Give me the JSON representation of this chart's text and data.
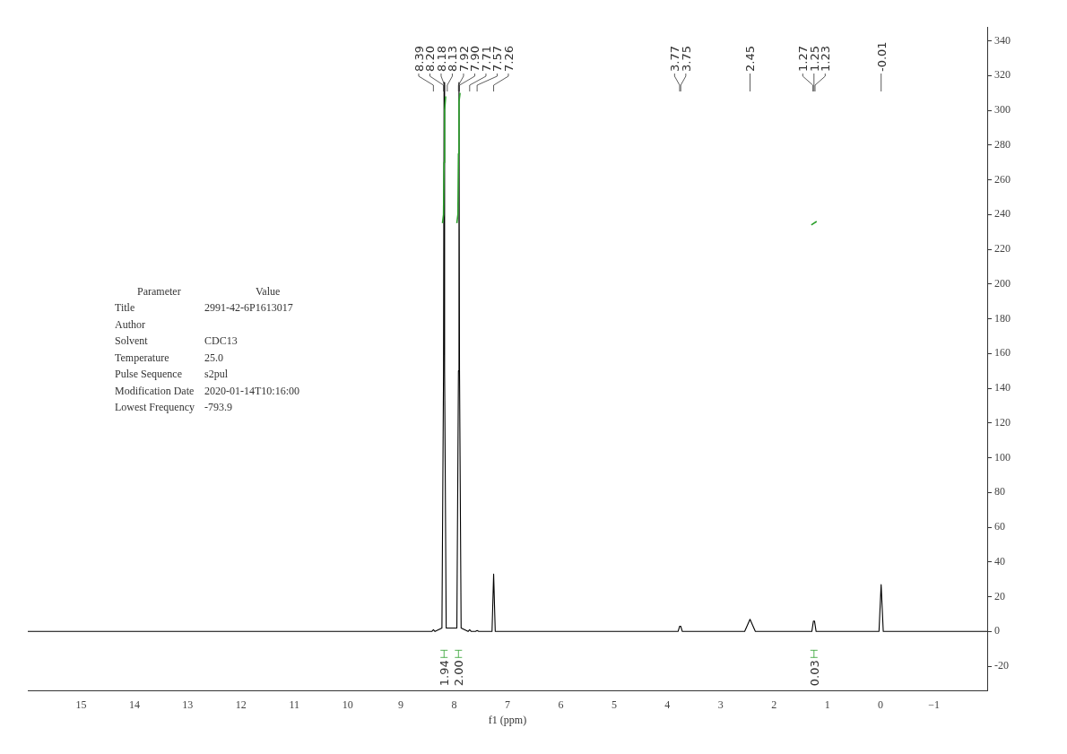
{
  "chart_data": {
    "type": "line",
    "xlabel": "f1 (ppm)",
    "x": [
      16,
      8.6,
      8.42,
      8.39,
      8.36,
      8.23,
      8.2,
      8.19,
      8.18,
      8.15,
      7.95,
      7.92,
      7.91,
      7.9,
      7.87,
      7.74,
      7.71,
      7.68,
      7.6,
      7.57,
      7.54,
      7.29,
      7.26,
      7.23,
      3.8,
      3.77,
      3.75,
      3.72,
      2.55,
      2.45,
      2.35,
      1.29,
      1.26,
      1.24,
      1.21,
      0.03,
      -0.01,
      -0.05,
      -2
    ],
    "series": [
      {
        "color": "#000000",
        "values": [
          0,
          0,
          0,
          1,
          0,
          2,
          150,
          316,
          150,
          2,
          2,
          150,
          316,
          150,
          2,
          0,
          1,
          0,
          0,
          0.5,
          0,
          0,
          33,
          0,
          0,
          3,
          3,
          0,
          0,
          7,
          0,
          0,
          6,
          6,
          0,
          0,
          27,
          0,
          0
        ]
      },
      {
        "color": "#2ca02c",
        "x": [
          8.22,
          8.2,
          8.19,
          8.18,
          8.16,
          8.1,
          7.95,
          7.93,
          7.92,
          7.91,
          7.89,
          1.5,
          1.3,
          1.2
        ],
        "values": [
          235,
          240,
          270,
          300,
          308,
          null,
          235,
          240,
          275,
          305,
          310,
          null,
          234,
          236
        ]
      }
    ],
    "xlim": [
      16,
      -2
    ],
    "xticks": [
      15,
      14,
      13,
      12,
      11,
      10,
      9,
      8,
      7,
      6,
      5,
      4,
      3,
      2,
      1,
      0,
      -1
    ],
    "ylim": [
      -34,
      348
    ],
    "yticks": [
      -20,
      0,
      20,
      40,
      60,
      80,
      100,
      120,
      140,
      160,
      180,
      200,
      220,
      240,
      260,
      280,
      300,
      320,
      340
    ],
    "grid": false,
    "legend": false,
    "marker": "none",
    "line_style": "solid",
    "annotations": [
      {
        "text": "8.39",
        "x": 8.39
      },
      {
        "text": "8.20",
        "x": 8.2
      },
      {
        "text": "8.18",
        "x": 8.18
      },
      {
        "text": "8.13",
        "x": 8.13
      },
      {
        "text": "7.92",
        "x": 7.92
      },
      {
        "text": "7.90",
        "x": 7.9
      },
      {
        "text": "7.71",
        "x": 7.71
      },
      {
        "text": "7.57",
        "x": 7.57
      },
      {
        "text": "7.26",
        "x": 7.26
      },
      {
        "text": "3.77",
        "x": 3.77
      },
      {
        "text": "3.75",
        "x": 3.75
      },
      {
        "text": "2.45",
        "x": 2.45
      },
      {
        "text": "1.27",
        "x": 1.27
      },
      {
        "text": "1.25",
        "x": 1.25
      },
      {
        "text": "1.23",
        "x": 1.23
      },
      {
        "text": "-0.01",
        "x": -0.01
      },
      "1.94",
      "2.00",
      "0.03",
      "Parameter\tValue",
      "Title\t2991-42-6P1613017",
      "Author\t",
      "Solvent\tCDC13",
      "Temperature\t25.0",
      "Pulse Sequence\ts2pul",
      "Modification Date\t2020-01-14T10:16:00",
      "Lowest Frequency\t-793.9"
    ]
  }
}
